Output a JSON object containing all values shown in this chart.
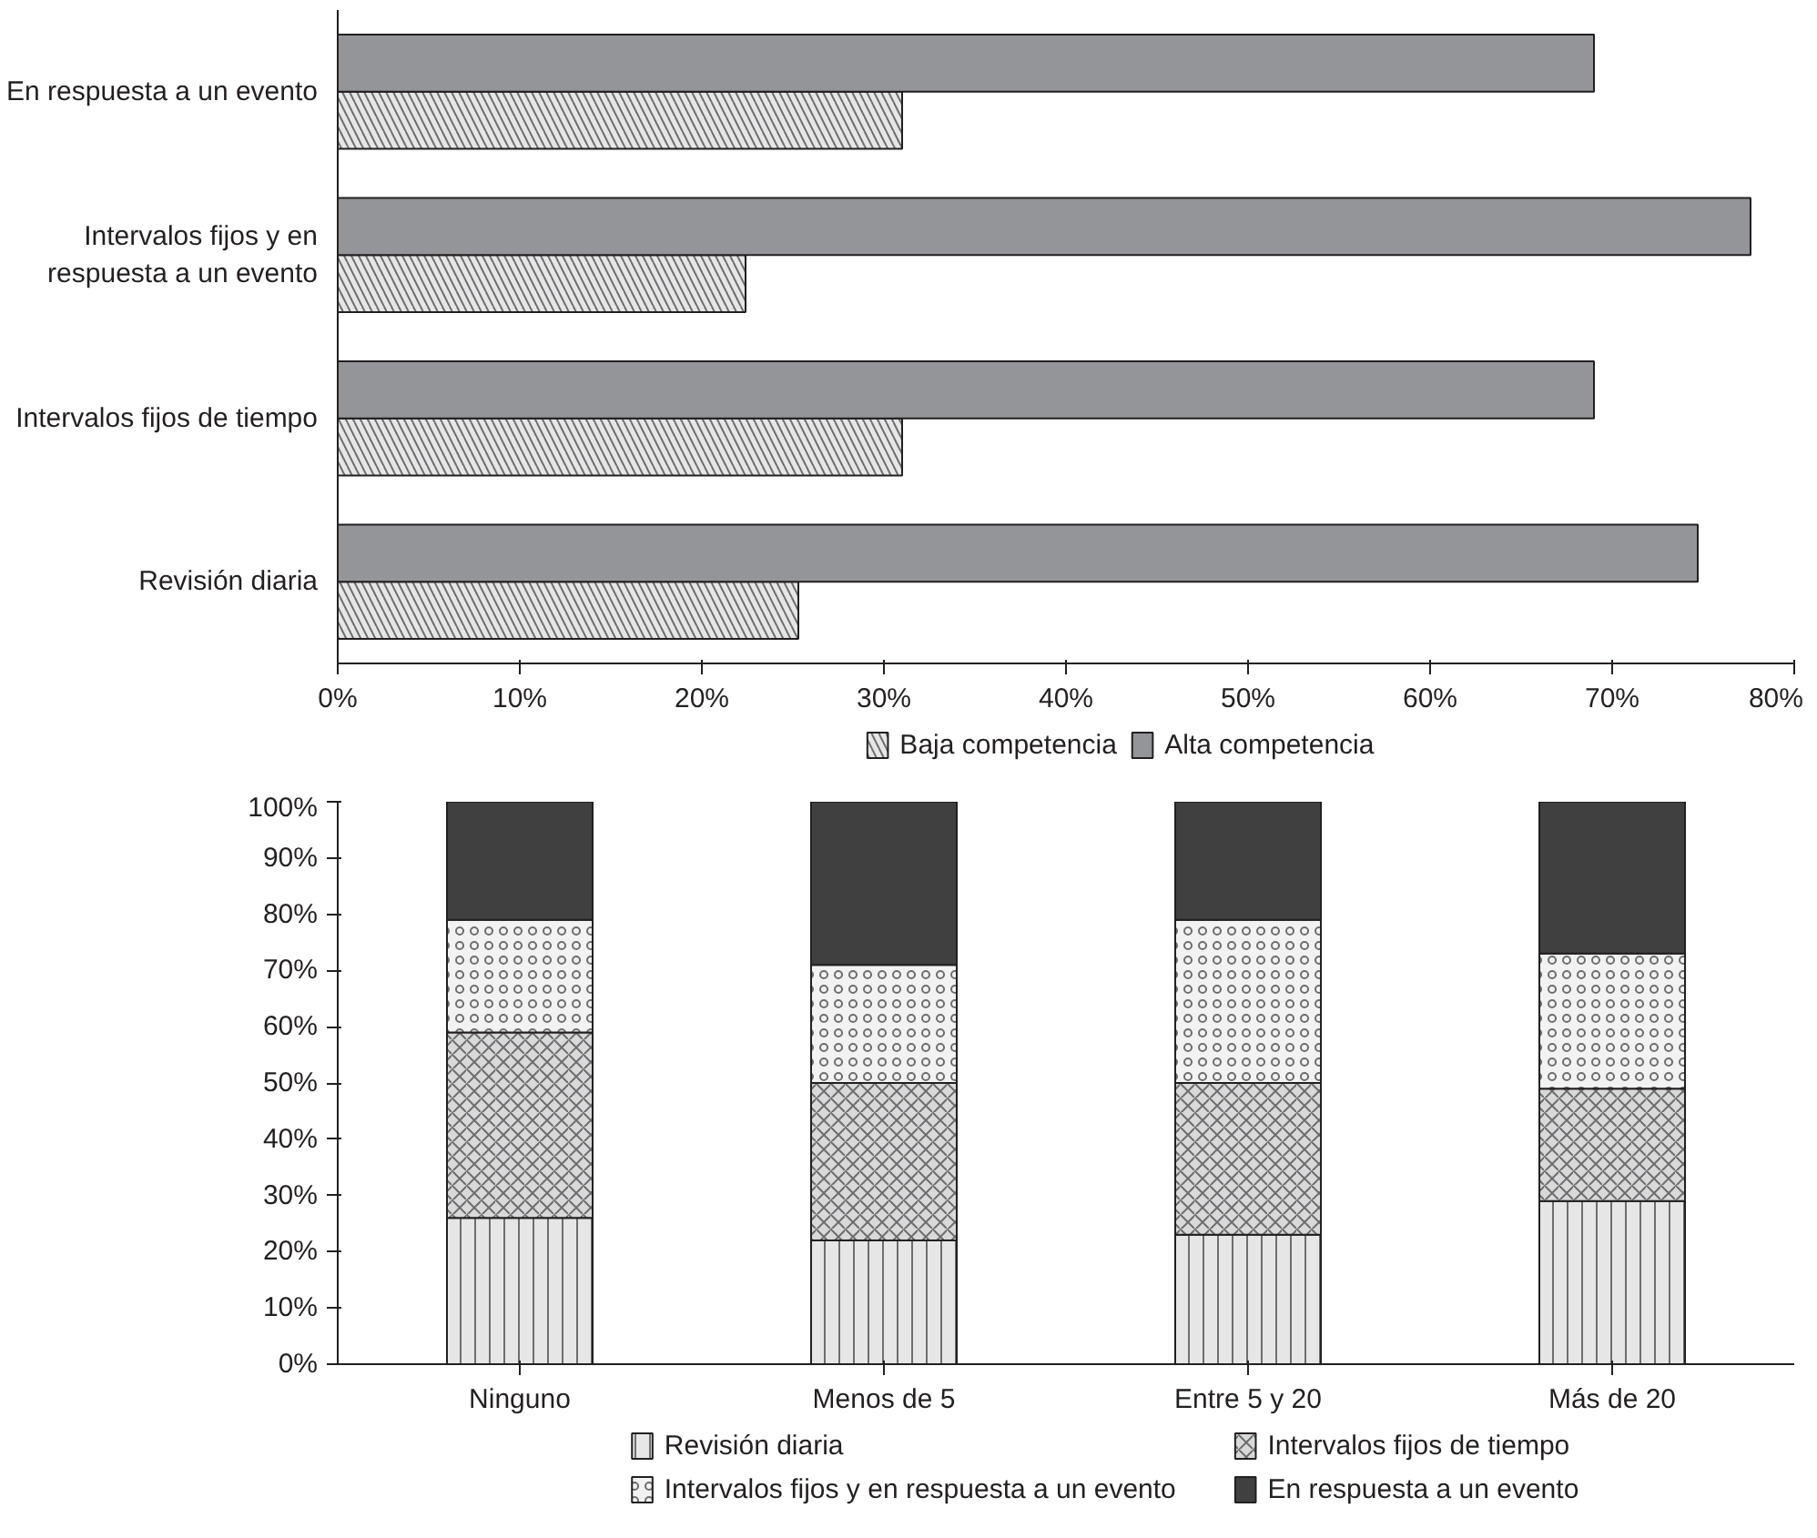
{
  "chart_data": [
    {
      "type": "bar",
      "orientation": "horizontal",
      "categories": [
        "En respuesta a un evento",
        "Intervalos fijos y en\nrespuesta a un evento",
        "Intervalos fijos de tiempo",
        "Revisión diaria"
      ],
      "series": [
        {
          "name": "Baja competencia",
          "color": "#e6e6e6",
          "values": [
            31,
            22.4,
            31,
            25.3
          ]
        },
        {
          "name": "Alta competencia",
          "color": "#939598",
          "values": [
            69,
            77.6,
            69,
            74.7
          ]
        }
      ],
      "xlim": [
        0,
        80
      ],
      "xticks": [
        {
          "value": 0,
          "label": "0%"
        },
        {
          "value": 10,
          "label": "10%"
        },
        {
          "value": 20,
          "label": "20%"
        },
        {
          "value": 30,
          "label": "30%"
        },
        {
          "value": 40,
          "label": "40%"
        },
        {
          "value": 50,
          "label": "50%"
        },
        {
          "value": 60,
          "label": "60%"
        },
        {
          "value": 70,
          "label": "70%"
        },
        {
          "value": 80,
          "label": "80%"
        }
      ],
      "grid": false,
      "legend": "bottom"
    },
    {
      "type": "bar",
      "stacked": true,
      "categories": [
        "Ninguno",
        "Menos de 5",
        "Entre 5 y 20",
        "Más de 20"
      ],
      "series": [
        {
          "name": "Revisión diaria",
          "color": "#e6e6e6",
          "values": [
            26,
            22,
            23,
            29
          ]
        },
        {
          "name": "Intervalos fijos de tiempo",
          "color": "#d9d9d9",
          "values": [
            33,
            28,
            27,
            20
          ]
        },
        {
          "name": "Intervalos fijos y en respuesta a un evento",
          "color": "#f2f2f2",
          "values": [
            20,
            21,
            29,
            24
          ]
        },
        {
          "name": "En respuesta a un evento",
          "color": "#404040",
          "values": [
            21,
            29,
            21,
            27
          ]
        }
      ],
      "ylim": [
        0,
        100
      ],
      "yticks": [
        {
          "value": 0,
          "label": "0%"
        },
        {
          "value": 10,
          "label": "10%"
        },
        {
          "value": 20,
          "label": "20%"
        },
        {
          "value": 30,
          "label": "30%"
        },
        {
          "value": 40,
          "label": "40%"
        },
        {
          "value": 50,
          "label": "50%"
        },
        {
          "value": 60,
          "label": "60%"
        },
        {
          "value": 70,
          "label": "70%"
        },
        {
          "value": 80,
          "label": "80%"
        },
        {
          "value": 90,
          "label": "90%"
        },
        {
          "value": 100,
          "label": "100%"
        }
      ],
      "grid": false,
      "legend": "bottom"
    }
  ]
}
